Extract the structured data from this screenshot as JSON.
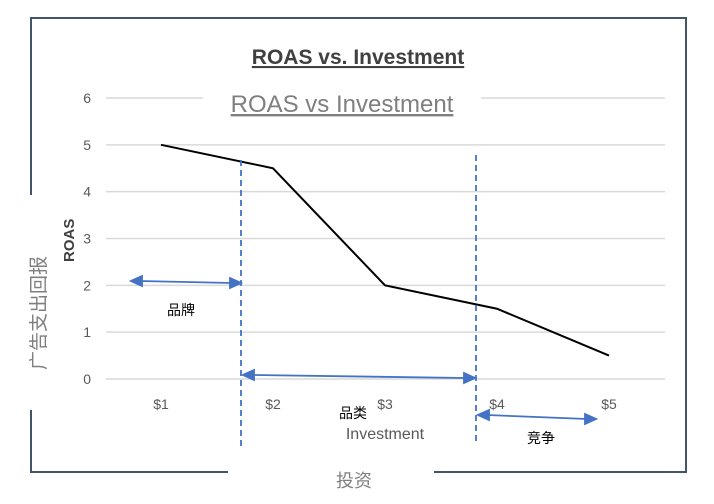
{
  "chart_data": {
    "type": "line",
    "title": "ROAS vs. Investment",
    "inner_title": "ROAS vs Investment",
    "ylabel_cn": "广告支出回报",
    "ylabel_en": "ROAS",
    "xlabel_en": "Investment",
    "xlabel_cn": "投资",
    "categories": [
      "$1",
      "$2",
      "$3",
      "$4",
      "$5"
    ],
    "y_ticks": [
      "0",
      "1",
      "2",
      "3",
      "4",
      "5",
      "6"
    ],
    "ylim": [
      0,
      6
    ],
    "grid": true,
    "series": [
      {
        "values": [
          5,
          4.5,
          2,
          1.5,
          0.5
        ]
      }
    ],
    "regions": [
      {
        "label": "品牌"
      },
      {
        "label": "品类"
      },
      {
        "label": "竞争"
      }
    ],
    "colors": {
      "line": "#000000",
      "grid": "#d9d9d9",
      "annotation": "#4472c4",
      "frame": "#44546a",
      "axis_text": "#595959"
    }
  }
}
